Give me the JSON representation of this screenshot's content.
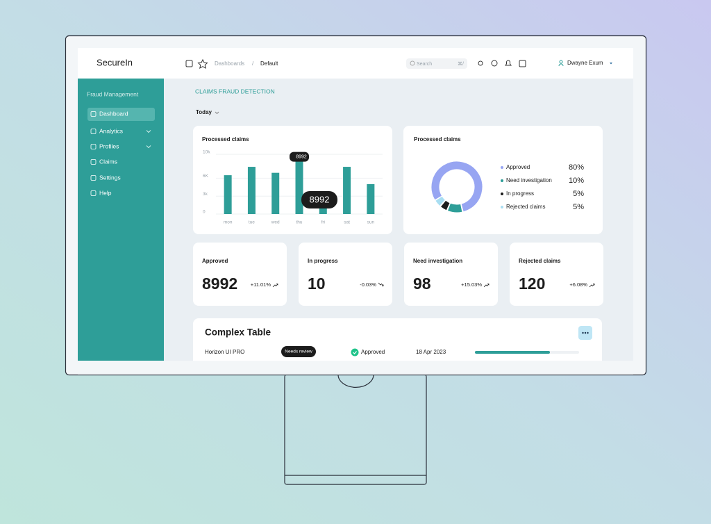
{
  "header": {
    "brand": "SecureIn",
    "breadcrumb": [
      "Dashboards",
      "/",
      "Default"
    ],
    "search_placeholder": "Search",
    "search_shortcut": "⌘/",
    "user": "Dwayne Exum"
  },
  "sidebar": {
    "section": "Fraud Management",
    "items": [
      "Dashboard",
      "Analytics",
      "Profiles",
      "Claims",
      "Settings",
      "Help"
    ]
  },
  "page": {
    "title": "CLAIMS FRAUD DETECTION",
    "period": "Today"
  },
  "chart_data": [
    {
      "type": "bar",
      "title": "Processed claims",
      "categories": [
        "mon",
        "tue",
        "wed",
        "thu",
        "fri",
        "sat",
        "sun"
      ],
      "values": [
        6500,
        7900,
        6900,
        8992,
        1200,
        7900,
        5000
      ],
      "color": "#2e9e98",
      "ylim": [
        0,
        10000
      ],
      "yticks": [
        0,
        {
          "value": 3000,
          "label": "3k"
        },
        {
          "value": 6000,
          "label": "6K"
        },
        {
          "value": 10000,
          "label": "10k"
        }
      ],
      "grid": true
    },
    {
      "type": "pie",
      "title": "Processed claims",
      "categories": [
        "Approved",
        "Need investigation",
        "In progress",
        "Rejected claims"
      ],
      "values": [
        80,
        10,
        5,
        5
      ],
      "value_labels": [
        "80%",
        "10%",
        "5%",
        "5%"
      ],
      "colors": [
        "#97a5f2",
        "#2e9e98",
        "#1c1c1c",
        "#a9def2"
      ]
    }
  ],
  "stats": [
    {
      "label": "Approved",
      "value": "8992",
      "change": "+11.01%",
      "trend": "up"
    },
    {
      "label": "In progress",
      "value": "10",
      "change": "-0.03%",
      "trend": "down"
    },
    {
      "label": "Need investigation",
      "value": "98",
      "change": "+15.03%",
      "trend": "up"
    },
    {
      "label": "Rejected claims",
      "value": "120",
      "change": "+6.08%",
      "trend": "up"
    }
  ],
  "table": {
    "title": "Complex Table",
    "rows": [
      {
        "name": "Horizon UI PRO",
        "badge": "Needs review",
        "status": "Approved",
        "date": "18 Apr 2023",
        "progress": 72
      }
    ]
  }
}
